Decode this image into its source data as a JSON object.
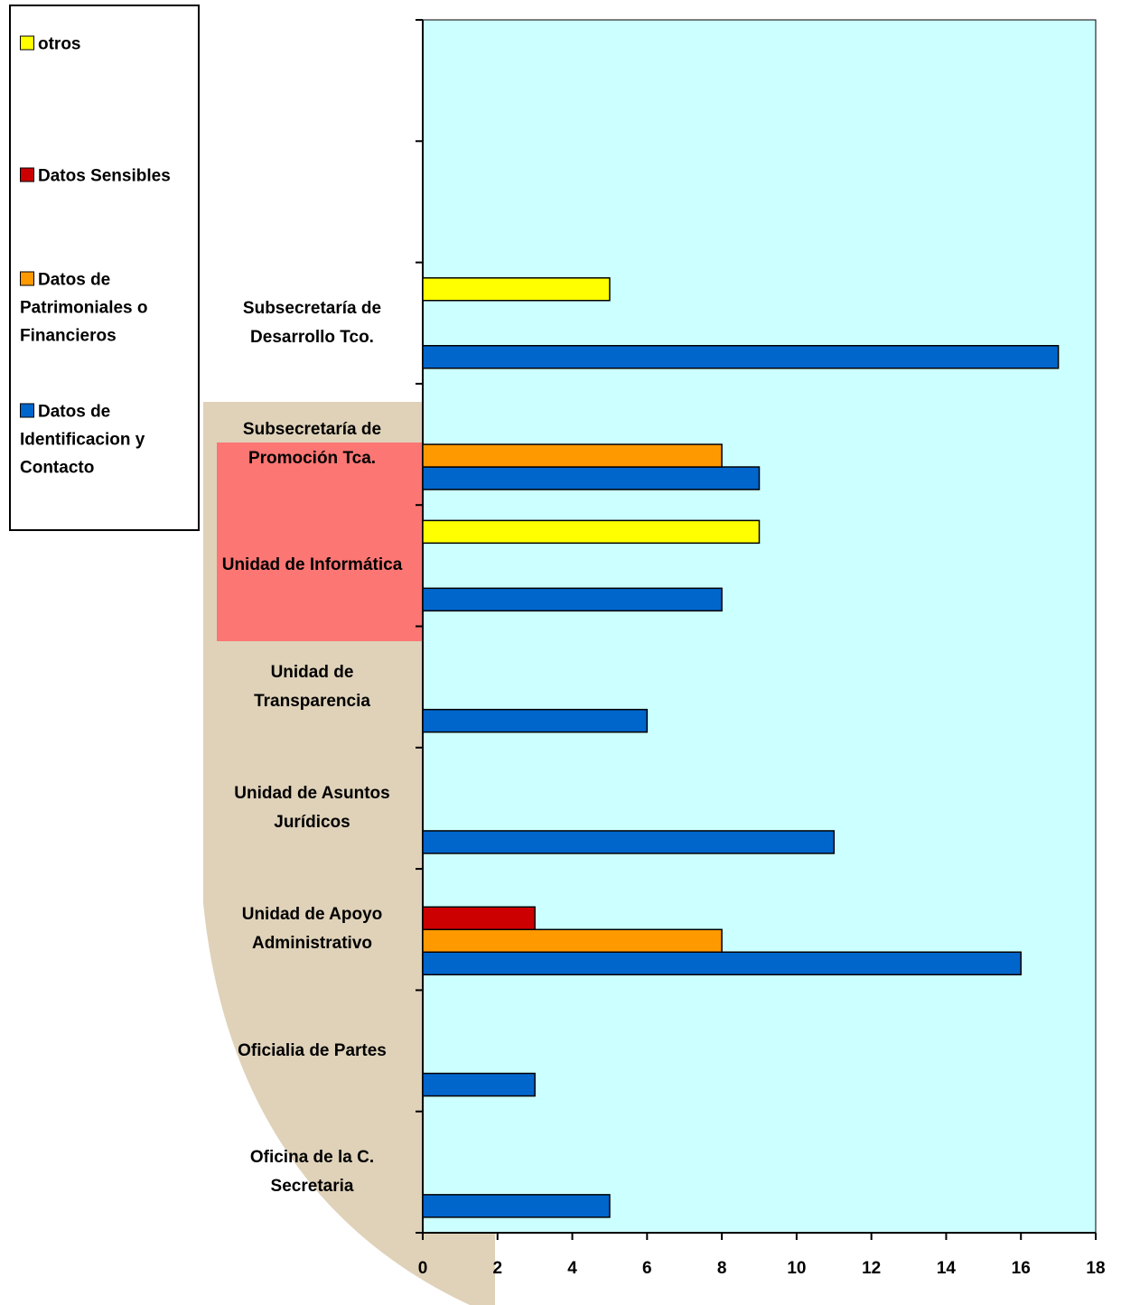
{
  "chart_data": {
    "type": "hbar",
    "categories": [
      "Oficina de la C. Secretaria",
      "Oficialia de Partes",
      "Unidad de Apoyo Administrativo",
      "Unidad de Asuntos Jurídicos",
      "Unidad de Transparencia",
      "Unidad de Informática",
      "Subsecretaría de Promoción Tca.",
      "Subsecretaría de Desarrollo Tco.",
      null,
      null
    ],
    "series": [
      {
        "name": "Datos de Identificacion y Contacto",
        "color": "#0066cc",
        "values": [
          5,
          3,
          16,
          11,
          6,
          8,
          9,
          17,
          null,
          null
        ]
      },
      {
        "name": "Datos de Patrimoniales o Financieros",
        "color": "#ff9900",
        "values": [
          null,
          null,
          8,
          null,
          null,
          null,
          8,
          null,
          null,
          null
        ]
      },
      {
        "name": "Datos Sensibles",
        "color": "#cc0000",
        "values": [
          null,
          null,
          3,
          null,
          null,
          null,
          null,
          null,
          null,
          null
        ]
      },
      {
        "name": "otros",
        "color": "#ffff00",
        "values": [
          null,
          null,
          null,
          null,
          null,
          9,
          null,
          5,
          null,
          null
        ]
      }
    ],
    "xlim": [
      0,
      18
    ],
    "xticks": [
      0,
      2,
      4,
      6,
      8,
      10,
      12,
      14,
      16,
      18
    ]
  }
}
